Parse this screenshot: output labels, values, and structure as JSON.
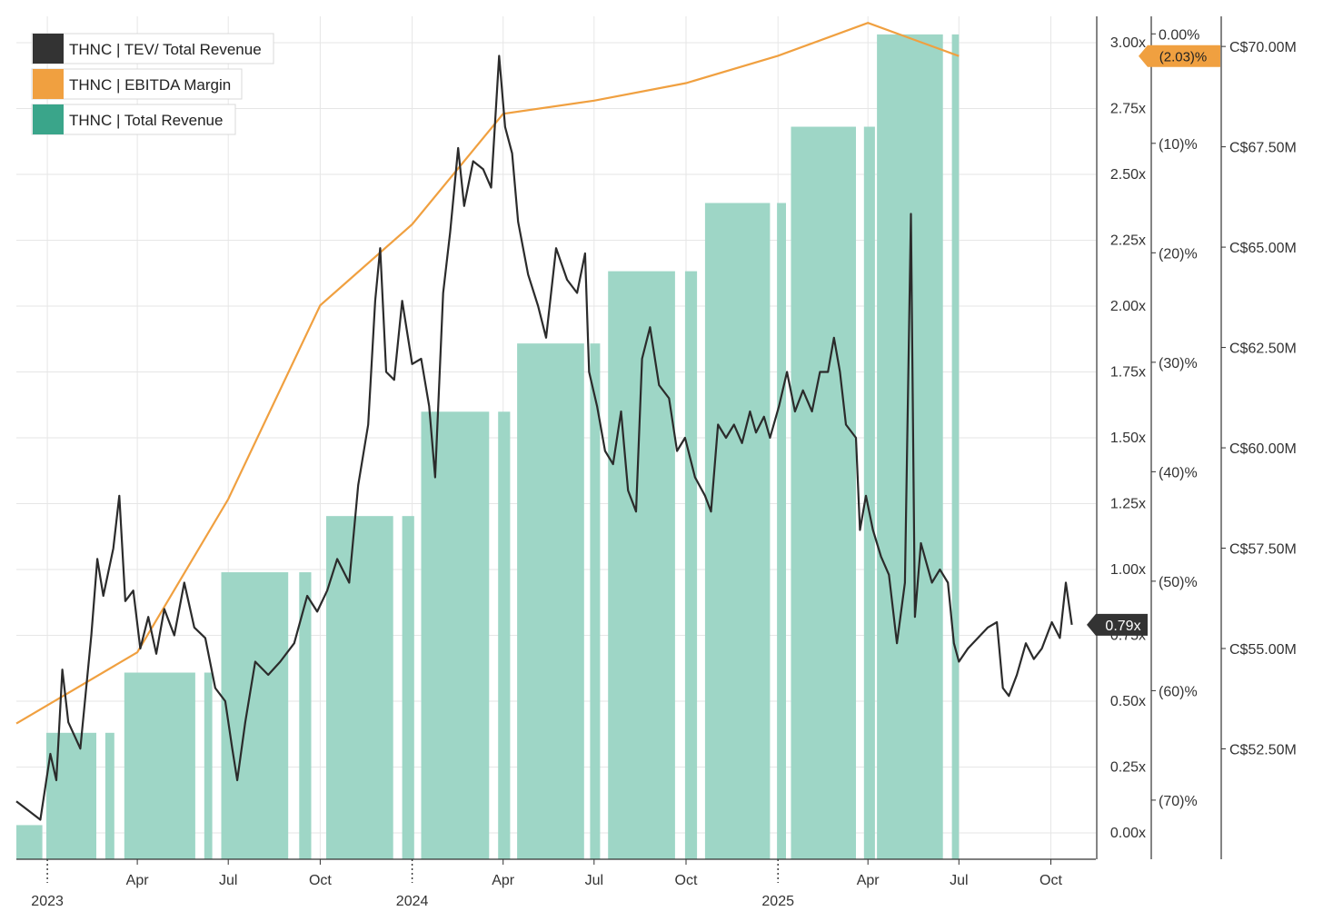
{
  "chart_data": {
    "type": "line",
    "colors": {
      "tev": "#2b2b2b",
      "ebitda": "#f0a040",
      "revenue_fill": "#9ed6c6",
      "revenue_legend": "#3aa58a",
      "grid": "#e6e6e6",
      "axis": "#333333"
    },
    "legend": [
      {
        "label": "THNC | TEV/ Total Revenue",
        "color": "#333333"
      },
      {
        "label": "THNC | EBITDA Margin",
        "color": "#f0a040"
      },
      {
        "label": "THNC | Total Revenue",
        "color": "#3aa58a"
      }
    ],
    "x_axis": {
      "range": [
        "2022-12-01",
        "2025-11-15"
      ],
      "ticks": [
        {
          "date": "2023-01-01",
          "label": "",
          "major": true
        },
        {
          "date": "2023-04-01",
          "label": "Apr",
          "major": false
        },
        {
          "date": "2023-07-01",
          "label": "Jul",
          "major": false
        },
        {
          "date": "2023-10-01",
          "label": "Oct",
          "major": false
        },
        {
          "date": "2024-01-01",
          "label": "",
          "major": true
        },
        {
          "date": "2024-04-01",
          "label": "Apr",
          "major": false
        },
        {
          "date": "2024-07-01",
          "label": "Jul",
          "major": false
        },
        {
          "date": "2024-10-01",
          "label": "Oct",
          "major": false
        },
        {
          "date": "2025-01-01",
          "label": "",
          "major": true
        },
        {
          "date": "2025-04-01",
          "label": "Apr",
          "major": false
        },
        {
          "date": "2025-07-01",
          "label": "Jul",
          "major": false
        },
        {
          "date": "2025-10-01",
          "label": "Oct",
          "major": false
        }
      ],
      "year_labels": [
        {
          "date": "2023-01-01",
          "label": "2023"
        },
        {
          "date": "2024-01-01",
          "label": "2024"
        },
        {
          "date": "2025-01-01",
          "label": "2025"
        }
      ]
    },
    "axis_tev": {
      "range": [
        -0.1,
        3.1
      ],
      "ticks": [
        0.0,
        0.25,
        0.5,
        0.75,
        1.0,
        1.25,
        1.5,
        1.75,
        2.0,
        2.25,
        2.5,
        2.75,
        3.0
      ],
      "tick_labels": [
        "0.00x",
        "0.25x",
        "0.50x",
        "0.75x",
        "1.00x",
        "1.25x",
        "1.50x",
        "1.75x",
        "2.00x",
        "2.25x",
        "2.50x",
        "2.75x",
        "3.00x"
      ]
    },
    "axis_margin": {
      "range": [
        -75.4,
        1.6
      ],
      "ticks": [
        0,
        -10,
        -20,
        -30,
        -40,
        -50,
        -60,
        -70
      ],
      "tick_labels": [
        "0.00%",
        "(10)%",
        "(20)%",
        "(30)%",
        "(40)%",
        "(50)%",
        "(60)%",
        "(70)%"
      ]
    },
    "axis_revenue": {
      "range": [
        49.75,
        70.75
      ],
      "ticks": [
        52.5,
        55.0,
        57.5,
        60.0,
        62.5,
        65.0,
        67.5,
        70.0
      ],
      "tick_labels": [
        "C$52.50M",
        "C$55.00M",
        "C$57.50M",
        "C$60.00M",
        "C$62.50M",
        "C$65.00M",
        "C$67.50M",
        "C$70.00M"
      ]
    },
    "series_revenue": {
      "name": "THNC | Total Revenue",
      "unit": "C$M",
      "bars": [
        {
          "start": "2022-12-01",
          "end": "2022-12-27",
          "value": 50.6
        },
        {
          "start": "2022-12-31",
          "end": "2023-02-19",
          "value": 52.9
        },
        {
          "start": "2023-02-28",
          "end": "2023-03-09",
          "value": 52.9
        },
        {
          "start": "2023-03-19",
          "end": "2023-05-29",
          "value": 54.4
        },
        {
          "start": "2023-06-07",
          "end": "2023-06-15",
          "value": 54.4
        },
        {
          "start": "2023-06-24",
          "end": "2023-08-30",
          "value": 56.9
        },
        {
          "start": "2023-09-10",
          "end": "2023-09-22",
          "value": 56.9
        },
        {
          "start": "2023-10-07",
          "end": "2023-12-13",
          "value": 58.3
        },
        {
          "start": "2023-12-22",
          "end": "2024-01-03",
          "value": 58.3
        },
        {
          "start": "2024-01-10",
          "end": "2024-03-18",
          "value": 60.9
        },
        {
          "start": "2024-03-27",
          "end": "2024-04-08",
          "value": 60.9
        },
        {
          "start": "2024-04-15",
          "end": "2024-06-21",
          "value": 62.6
        },
        {
          "start": "2024-06-27",
          "end": "2024-07-07",
          "value": 62.6
        },
        {
          "start": "2024-07-15",
          "end": "2024-09-20",
          "value": 64.4
        },
        {
          "start": "2024-09-30",
          "end": "2024-10-12",
          "value": 64.4
        },
        {
          "start": "2024-10-20",
          "end": "2024-12-24",
          "value": 66.1
        },
        {
          "start": "2024-12-31",
          "end": "2025-01-09",
          "value": 66.1
        },
        {
          "start": "2025-01-14",
          "end": "2025-03-20",
          "value": 68.0
        },
        {
          "start": "2025-03-28",
          "end": "2025-04-08",
          "value": 68.0
        },
        {
          "start": "2025-04-10",
          "end": "2025-06-15",
          "value": 70.3
        },
        {
          "start": "2025-06-24",
          "end": "2025-07-01",
          "value": 70.3
        }
      ]
    },
    "series_ebitda": {
      "name": "THNC | EBITDA Margin",
      "unit": "%",
      "points": [
        {
          "date": "2022-12-01",
          "value": -63.0
        },
        {
          "date": "2023-04-01",
          "value": -56.5
        },
        {
          "date": "2023-07-01",
          "value": -42.5
        },
        {
          "date": "2023-10-01",
          "value": -24.8
        },
        {
          "date": "2024-01-01",
          "value": -17.4
        },
        {
          "date": "2024-04-01",
          "value": -7.3
        },
        {
          "date": "2024-07-01",
          "value": -6.1
        },
        {
          "date": "2024-10-01",
          "value": -4.5
        },
        {
          "date": "2025-01-01",
          "value": -2.0
        },
        {
          "date": "2025-04-01",
          "value": 1.0
        },
        {
          "date": "2025-07-01",
          "value": -2.03
        }
      ],
      "last_label": "(2.03)%"
    },
    "series_tev": {
      "name": "THNC | TEV/ Total Revenue",
      "unit": "x",
      "points": [
        {
          "date": "2022-12-01",
          "value": 0.12
        },
        {
          "date": "2022-12-25",
          "value": 0.05
        },
        {
          "date": "2023-01-04",
          "value": 0.3
        },
        {
          "date": "2023-01-10",
          "value": 0.2
        },
        {
          "date": "2023-01-16",
          "value": 0.62
        },
        {
          "date": "2023-01-22",
          "value": 0.42
        },
        {
          "date": "2023-02-03",
          "value": 0.32
        },
        {
          "date": "2023-02-14",
          "value": 0.75
        },
        {
          "date": "2023-02-20",
          "value": 1.04
        },
        {
          "date": "2023-02-26",
          "value": 0.9
        },
        {
          "date": "2023-03-08",
          "value": 1.08
        },
        {
          "date": "2023-03-14",
          "value": 1.28
        },
        {
          "date": "2023-03-20",
          "value": 0.88
        },
        {
          "date": "2023-03-28",
          "value": 0.92
        },
        {
          "date": "2023-04-04",
          "value": 0.7
        },
        {
          "date": "2023-04-12",
          "value": 0.82
        },
        {
          "date": "2023-04-20",
          "value": 0.68
        },
        {
          "date": "2023-04-28",
          "value": 0.85
        },
        {
          "date": "2023-05-08",
          "value": 0.75
        },
        {
          "date": "2023-05-18",
          "value": 0.95
        },
        {
          "date": "2023-05-28",
          "value": 0.78
        },
        {
          "date": "2023-06-08",
          "value": 0.74
        },
        {
          "date": "2023-06-18",
          "value": 0.55
        },
        {
          "date": "2023-06-28",
          "value": 0.5
        },
        {
          "date": "2023-07-05",
          "value": 0.32
        },
        {
          "date": "2023-07-10",
          "value": 0.2
        },
        {
          "date": "2023-07-18",
          "value": 0.42
        },
        {
          "date": "2023-07-28",
          "value": 0.65
        },
        {
          "date": "2023-08-10",
          "value": 0.6
        },
        {
          "date": "2023-08-22",
          "value": 0.65
        },
        {
          "date": "2023-09-05",
          "value": 0.72
        },
        {
          "date": "2023-09-18",
          "value": 0.9
        },
        {
          "date": "2023-09-28",
          "value": 0.84
        },
        {
          "date": "2023-10-08",
          "value": 0.92
        },
        {
          "date": "2023-10-18",
          "value": 1.04
        },
        {
          "date": "2023-10-30",
          "value": 0.95
        },
        {
          "date": "2023-11-08",
          "value": 1.32
        },
        {
          "date": "2023-11-18",
          "value": 1.55
        },
        {
          "date": "2023-11-25",
          "value": 2.02
        },
        {
          "date": "2023-11-30",
          "value": 2.22
        },
        {
          "date": "2023-12-06",
          "value": 1.75
        },
        {
          "date": "2023-12-14",
          "value": 1.72
        },
        {
          "date": "2023-12-22",
          "value": 2.02
        },
        {
          "date": "2024-01-01",
          "value": 1.78
        },
        {
          "date": "2024-01-10",
          "value": 1.8
        },
        {
          "date": "2024-01-18",
          "value": 1.62
        },
        {
          "date": "2024-01-24",
          "value": 1.35
        },
        {
          "date": "2024-02-01",
          "value": 2.05
        },
        {
          "date": "2024-02-08",
          "value": 2.28
        },
        {
          "date": "2024-02-16",
          "value": 2.6
        },
        {
          "date": "2024-02-22",
          "value": 2.38
        },
        {
          "date": "2024-03-02",
          "value": 2.55
        },
        {
          "date": "2024-03-12",
          "value": 2.52
        },
        {
          "date": "2024-03-20",
          "value": 2.45
        },
        {
          "date": "2024-03-28",
          "value": 2.95
        },
        {
          "date": "2024-04-03",
          "value": 2.68
        },
        {
          "date": "2024-04-10",
          "value": 2.58
        },
        {
          "date": "2024-04-16",
          "value": 2.32
        },
        {
          "date": "2024-04-26",
          "value": 2.12
        },
        {
          "date": "2024-05-06",
          "value": 2.0
        },
        {
          "date": "2024-05-14",
          "value": 1.88
        },
        {
          "date": "2024-05-24",
          "value": 2.22
        },
        {
          "date": "2024-06-04",
          "value": 2.1
        },
        {
          "date": "2024-06-14",
          "value": 2.05
        },
        {
          "date": "2024-06-22",
          "value": 2.2
        },
        {
          "date": "2024-06-26",
          "value": 1.75
        },
        {
          "date": "2024-07-04",
          "value": 1.62
        },
        {
          "date": "2024-07-12",
          "value": 1.45
        },
        {
          "date": "2024-07-20",
          "value": 1.4
        },
        {
          "date": "2024-07-28",
          "value": 1.6
        },
        {
          "date": "2024-08-04",
          "value": 1.3
        },
        {
          "date": "2024-08-12",
          "value": 1.22
        },
        {
          "date": "2024-08-18",
          "value": 1.8
        },
        {
          "date": "2024-08-26",
          "value": 1.92
        },
        {
          "date": "2024-09-04",
          "value": 1.7
        },
        {
          "date": "2024-09-14",
          "value": 1.65
        },
        {
          "date": "2024-09-22",
          "value": 1.45
        },
        {
          "date": "2024-09-30",
          "value": 1.5
        },
        {
          "date": "2024-10-10",
          "value": 1.35
        },
        {
          "date": "2024-10-20",
          "value": 1.28
        },
        {
          "date": "2024-10-26",
          "value": 1.22
        },
        {
          "date": "2024-11-02",
          "value": 1.55
        },
        {
          "date": "2024-11-10",
          "value": 1.5
        },
        {
          "date": "2024-11-18",
          "value": 1.55
        },
        {
          "date": "2024-11-26",
          "value": 1.48
        },
        {
          "date": "2024-12-04",
          "value": 1.6
        },
        {
          "date": "2024-12-10",
          "value": 1.52
        },
        {
          "date": "2024-12-18",
          "value": 1.58
        },
        {
          "date": "2024-12-24",
          "value": 1.5
        },
        {
          "date": "2025-01-02",
          "value": 1.62
        },
        {
          "date": "2025-01-10",
          "value": 1.75
        },
        {
          "date": "2025-01-18",
          "value": 1.6
        },
        {
          "date": "2025-01-26",
          "value": 1.68
        },
        {
          "date": "2025-02-04",
          "value": 1.6
        },
        {
          "date": "2025-02-12",
          "value": 1.75
        },
        {
          "date": "2025-02-20",
          "value": 1.75
        },
        {
          "date": "2025-02-26",
          "value": 1.88
        },
        {
          "date": "2025-03-04",
          "value": 1.75
        },
        {
          "date": "2025-03-10",
          "value": 1.55
        },
        {
          "date": "2025-03-20",
          "value": 1.5
        },
        {
          "date": "2025-03-24",
          "value": 1.15
        },
        {
          "date": "2025-03-30",
          "value": 1.28
        },
        {
          "date": "2025-04-06",
          "value": 1.15
        },
        {
          "date": "2025-04-14",
          "value": 1.05
        },
        {
          "date": "2025-04-22",
          "value": 0.98
        },
        {
          "date": "2025-04-30",
          "value": 0.72
        },
        {
          "date": "2025-05-08",
          "value": 0.95
        },
        {
          "date": "2025-05-14",
          "value": 2.35
        },
        {
          "date": "2025-05-18",
          "value": 0.82
        },
        {
          "date": "2025-05-24",
          "value": 1.1
        },
        {
          "date": "2025-06-04",
          "value": 0.95
        },
        {
          "date": "2025-06-12",
          "value": 1.0
        },
        {
          "date": "2025-06-20",
          "value": 0.95
        },
        {
          "date": "2025-06-26",
          "value": 0.72
        },
        {
          "date": "2025-07-01",
          "value": 0.65
        },
        {
          "date": "2025-07-10",
          "value": 0.7
        },
        {
          "date": "2025-07-20",
          "value": 0.74
        },
        {
          "date": "2025-07-30",
          "value": 0.78
        },
        {
          "date": "2025-08-08",
          "value": 0.8
        },
        {
          "date": "2025-08-14",
          "value": 0.55
        },
        {
          "date": "2025-08-20",
          "value": 0.52
        },
        {
          "date": "2025-08-28",
          "value": 0.6
        },
        {
          "date": "2025-09-06",
          "value": 0.72
        },
        {
          "date": "2025-09-14",
          "value": 0.66
        },
        {
          "date": "2025-09-22",
          "value": 0.7
        },
        {
          "date": "2025-10-02",
          "value": 0.8
        },
        {
          "date": "2025-10-10",
          "value": 0.74
        },
        {
          "date": "2025-10-16",
          "value": 0.95
        },
        {
          "date": "2025-10-22",
          "value": 0.79
        }
      ],
      "last_label": "0.79x"
    }
  }
}
